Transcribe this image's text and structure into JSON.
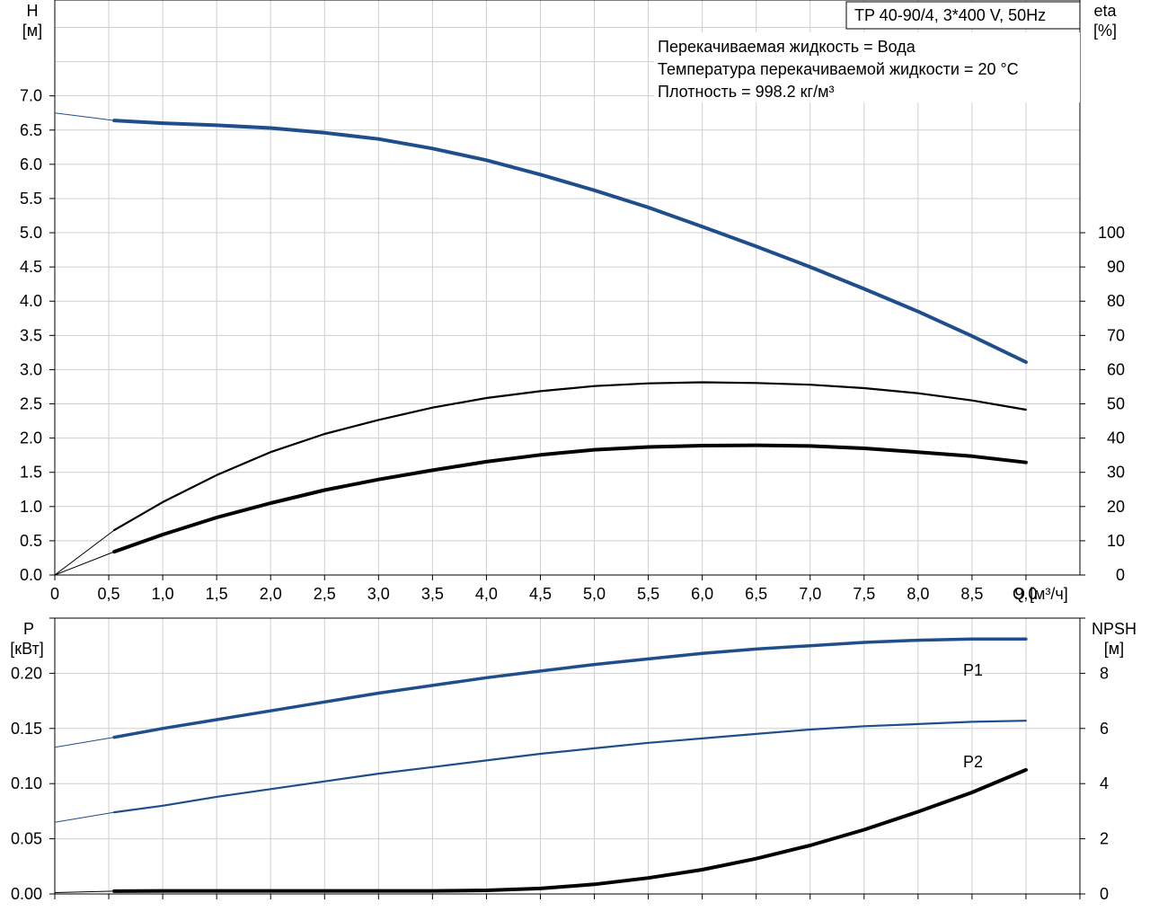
{
  "title_box": "TP 40-90/4, 3*400 V, 50Hz",
  "info_lines": [
    "Перекачиваемая жидкость = Вода",
    "Температура перекачиваемой жидкости = 20 °C",
    "Плотность = 998.2 кг/м³"
  ],
  "colors": {
    "head": "#1f4e8c",
    "power": "#1f4e8c",
    "eff": "#000000",
    "npsh": "#000000",
    "grid": "#cfcfcf"
  },
  "chart_data": [
    {
      "type": "line",
      "x_label": "Q [м³/ч]",
      "x_unit_label": "Q [м³/ч]",
      "x_ticks": [
        "0",
        "0,5",
        "1,0",
        "1,5",
        "2,0",
        "2,5",
        "3,0",
        "3,5",
        "4,0",
        "4,5",
        "5,0",
        "5,5",
        "6,0",
        "6,5",
        "7,0",
        "7,5",
        "8,0",
        "8,5",
        "9,0"
      ],
      "xlim": [
        0,
        9.5
      ],
      "y_left_label_line1": "H",
      "y_left_label_line2": "[м]",
      "y_left_ticks": [
        "0.0",
        "0.5",
        "1.0",
        "1.5",
        "2.0",
        "2.5",
        "3.0",
        "3.5",
        "4.0",
        "4.5",
        "5.0",
        "5.5",
        "6.0",
        "6.5",
        "7.0"
      ],
      "y_left_lim": [
        0,
        8.4
      ],
      "y_right_label_line1": "eta",
      "y_right_label_line2": "[%]",
      "y_right_ticks": [
        "0",
        "10",
        "20",
        "30",
        "40",
        "50",
        "60",
        "70",
        "80",
        "90",
        "100"
      ],
      "y_right_lim": [
        0,
        168
      ],
      "grid": true,
      "series": [
        {
          "key": "head",
          "axis": "left",
          "x": [
            0.55,
            1.0,
            1.5,
            2.0,
            2.5,
            3.0,
            3.5,
            4.0,
            4.5,
            5.0,
            5.5,
            6.0,
            6.5,
            7.0,
            7.5,
            8.0,
            8.5,
            9.0
          ],
          "values": [
            6.64,
            6.6,
            6.57,
            6.53,
            6.46,
            6.37,
            6.23,
            6.06,
            5.85,
            5.62,
            5.37,
            5.09,
            4.8,
            4.5,
            4.18,
            3.85,
            3.49,
            3.11
          ],
          "extrapolated": {
            "x": [
              0,
              0.55
            ],
            "values": [
              6.75,
              6.64
            ]
          }
        },
        {
          "key": "eta",
          "axis": "right",
          "x": [
            0.55,
            1.0,
            1.5,
            2.0,
            2.5,
            3.0,
            3.5,
            4.0,
            4.5,
            5.0,
            5.5,
            6.0,
            6.5,
            7.0,
            7.5,
            8.0,
            8.5,
            9.0
          ],
          "values": [
            13.1,
            21.3,
            29.2,
            35.9,
            41.2,
            45.3,
            48.9,
            51.7,
            53.7,
            55.2,
            56.0,
            56.3,
            56.1,
            55.6,
            54.6,
            53.1,
            51.0,
            48.3
          ],
          "extrapolated": {
            "x": [
              0,
              0.55
            ],
            "values": [
              0,
              13.1
            ]
          }
        },
        {
          "key": "eta_total",
          "axis": "right",
          "x": [
            0.55,
            1.0,
            1.5,
            2.0,
            2.5,
            3.0,
            3.5,
            4.0,
            4.5,
            5.0,
            5.5,
            6.0,
            6.5,
            7.0,
            7.5,
            8.0,
            8.5,
            9.0
          ],
          "values": [
            6.8,
            11.8,
            16.8,
            21.0,
            24.8,
            27.9,
            30.6,
            33.1,
            35.1,
            36.6,
            37.4,
            37.8,
            37.9,
            37.7,
            37.0,
            35.9,
            34.7,
            32.9
          ],
          "extrapolated": {
            "x": [
              0,
              0.55
            ],
            "values": [
              0,
              6.8
            ]
          }
        }
      ]
    },
    {
      "type": "line",
      "y_left_label_line1": "P",
      "y_left_label_line2": "[кВт]",
      "y_left_ticks": [
        "0.00",
        "0.05",
        "0.10",
        "0.15",
        "0.20"
      ],
      "y_left_lim": [
        0,
        0.25
      ],
      "y_right_label_line1": "NPSH",
      "y_right_label_line2": "[м]",
      "y_right_ticks": [
        "0",
        "2",
        "4",
        "6",
        "8"
      ],
      "y_right_lim": [
        0,
        10
      ],
      "xlim": [
        0,
        9.5
      ],
      "grid": true,
      "series": [
        {
          "key": "p1",
          "name": "P1",
          "axis": "left",
          "x": [
            0.55,
            1.0,
            1.5,
            2.0,
            2.5,
            3.0,
            3.5,
            4.0,
            4.5,
            5.0,
            5.5,
            6.0,
            6.5,
            7.0,
            7.5,
            8.0,
            8.5,
            9.0
          ],
          "values": [
            0.142,
            0.15,
            0.158,
            0.166,
            0.174,
            0.182,
            0.189,
            0.196,
            0.202,
            0.208,
            0.213,
            0.218,
            0.222,
            0.225,
            0.228,
            0.23,
            0.231,
            0.231
          ],
          "extrapolated": {
            "x": [
              0,
              0.55
            ],
            "values": [
              0.133,
              0.142
            ]
          }
        },
        {
          "key": "p2",
          "name": "P2",
          "axis": "left",
          "x": [
            0.55,
            1.0,
            1.5,
            2.0,
            2.5,
            3.0,
            3.5,
            4.0,
            4.5,
            5.0,
            5.5,
            6.0,
            6.5,
            7.0,
            7.5,
            8.0,
            8.5,
            9.0
          ],
          "values": [
            0.074,
            0.08,
            0.088,
            0.095,
            0.102,
            0.109,
            0.115,
            0.121,
            0.127,
            0.132,
            0.137,
            0.141,
            0.145,
            0.149,
            0.152,
            0.154,
            0.156,
            0.157
          ],
          "extrapolated": {
            "x": [
              0,
              0.55
            ],
            "values": [
              0.065,
              0.074
            ]
          }
        },
        {
          "key": "npsh",
          "axis": "right",
          "x": [
            0.55,
            1.0,
            1.5,
            2.0,
            2.5,
            3.0,
            3.5,
            4.0,
            4.5,
            5.0,
            5.5,
            6.0,
            6.5,
            7.0,
            7.5,
            8.0,
            8.5,
            9.0
          ],
          "values": [
            0.1,
            0.11,
            0.11,
            0.11,
            0.11,
            0.11,
            0.11,
            0.13,
            0.2,
            0.35,
            0.58,
            0.88,
            1.28,
            1.76,
            2.33,
            2.98,
            3.68,
            4.5
          ],
          "extrapolated": {
            "x": [
              0,
              0.55
            ],
            "values": [
              0.05,
              0.1
            ]
          }
        }
      ]
    }
  ]
}
